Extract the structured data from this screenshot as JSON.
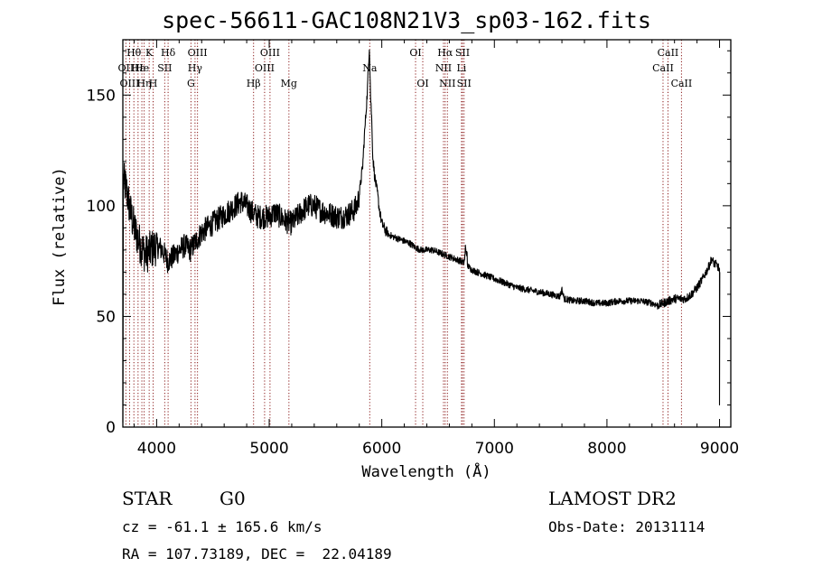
{
  "chart_data": {
    "type": "line",
    "title": "spec-56611-GAC108N21V3_sp03-162.fits",
    "xlabel": "Wavelength (Å)",
    "ylabel": "Flux (relative)",
    "xlim": [
      3700,
      9100
    ],
    "ylim": [
      0,
      175
    ],
    "xticks": [
      4000,
      5000,
      6000,
      7000,
      8000,
      9000
    ],
    "yticks": [
      0,
      50,
      100,
      150
    ],
    "grid": false,
    "series": [
      {
        "name": "Flux",
        "x": [
          3700,
          3730,
          3760,
          3800,
          3850,
          3900,
          3950,
          4000,
          4050,
          4100,
          4150,
          4200,
          4250,
          4300,
          4350,
          4400,
          4450,
          4500,
          4550,
          4600,
          4650,
          4700,
          4750,
          4800,
          4850,
          4900,
          4950,
          5000,
          5050,
          5100,
          5150,
          5200,
          5250,
          5300,
          5350,
          5400,
          5450,
          5500,
          5550,
          5600,
          5650,
          5700,
          5750,
          5780,
          5800,
          5830,
          5850,
          5870,
          5880,
          5890,
          5900,
          5910,
          5920,
          5940,
          5960,
          5980,
          6000,
          6030,
          6060,
          6100,
          6150,
          6200,
          6250,
          6300,
          6350,
          6400,
          6450,
          6500,
          6550,
          6600,
          6650,
          6700,
          6730,
          6740,
          6760,
          6800,
          6850,
          6900,
          6950,
          7000,
          7100,
          7200,
          7300,
          7400,
          7500,
          7580,
          7600,
          7620,
          7700,
          7800,
          7900,
          8000,
          8100,
          8200,
          8300,
          8400,
          8450,
          8500,
          8550,
          8600,
          8650,
          8700,
          8750,
          8800,
          8850,
          8900,
          8930,
          8950,
          8980,
          9000
        ],
        "values": [
          112,
          108,
          99,
          90,
          83,
          78,
          80,
          82,
          80,
          75,
          77,
          80,
          82,
          80,
          84,
          88,
          90,
          92,
          94,
          96,
          98,
          100,
          102,
          100,
          97,
          95,
          95,
          95,
          97,
          95,
          93,
          92,
          95,
          98,
          100,
          100,
          98,
          97,
          96,
          95,
          95,
          96,
          98,
          100,
          105,
          118,
          135,
          150,
          162,
          172,
          150,
          140,
          122,
          112,
          106,
          98,
          92,
          89,
          87,
          86,
          85,
          84,
          83,
          81,
          80,
          80,
          80,
          79,
          78,
          77,
          76,
          75,
          74,
          78,
          73,
          71,
          70,
          69,
          68,
          67,
          65,
          63,
          62,
          61,
          60,
          59,
          62,
          58,
          57,
          57,
          56,
          56,
          57,
          57,
          57,
          56,
          55,
          56,
          57,
          58,
          58,
          58,
          60,
          63,
          67,
          72,
          76,
          74,
          73,
          71
        ]
      }
    ],
    "lines": [
      {
        "name": "Hθ",
        "x": 3798,
        "row": 1
      },
      {
        "name": "OII",
        "x": 3727,
        "row": 2
      },
      {
        "name": "OIII",
        "x": 3760,
        "row": 3
      },
      {
        "name": "Hε",
        "x": 3835,
        "row": 2
      },
      {
        "name": "Hη",
        "x": 3889,
        "row": 3
      },
      {
        "name": "He",
        "x": 3869,
        "row": 2
      },
      {
        "name": "K",
        "x": 3934,
        "row": 1
      },
      {
        "name": "SII",
        "x": 4072,
        "row": 2
      },
      {
        "name": "H",
        "x": 3969,
        "row": 3
      },
      {
        "name": "Hδ",
        "x": 4102,
        "row": 1
      },
      {
        "name": "OIII",
        "x": 4363,
        "row": 1
      },
      {
        "name": "Hγ",
        "x": 4341,
        "row": 2
      },
      {
        "name": "G",
        "x": 4305,
        "row": 3
      },
      {
        "name": "OIII",
        "x": 5007,
        "row": 1
      },
      {
        "name": "OIII",
        "x": 4959,
        "row": 2
      },
      {
        "name": "Hβ",
        "x": 4861,
        "row": 3
      },
      {
        "name": "Mg",
        "x": 5175,
        "row": 3
      },
      {
        "name": "Na",
        "x": 5893,
        "row": 2
      },
      {
        "name": "OI",
        "x": 6300,
        "row": 1
      },
      {
        "name": "OI",
        "x": 6364,
        "row": 3
      },
      {
        "name": "Hα",
        "x": 6563,
        "row": 1
      },
      {
        "name": "SII",
        "x": 6717,
        "row": 1
      },
      {
        "name": "NII",
        "x": 6548,
        "row": 2
      },
      {
        "name": "Li",
        "x": 6708,
        "row": 2
      },
      {
        "name": "NII",
        "x": 6583,
        "row": 3
      },
      {
        "name": "SII",
        "x": 6731,
        "row": 3
      },
      {
        "name": "CaII",
        "x": 8542,
        "row": 1
      },
      {
        "name": "CaII",
        "x": 8498,
        "row": 2
      },
      {
        "name": "CaII",
        "x": 8662,
        "row": 3
      }
    ]
  },
  "info": {
    "class_label": "STAR",
    "subclass": "G0",
    "survey": "LAMOST DR2",
    "cz": "cz = -61.1 ± 165.6 km/s",
    "obs_date": "Obs-Date: 20131114",
    "coords": "RA = 107.73189, DEC =  22.04189"
  }
}
